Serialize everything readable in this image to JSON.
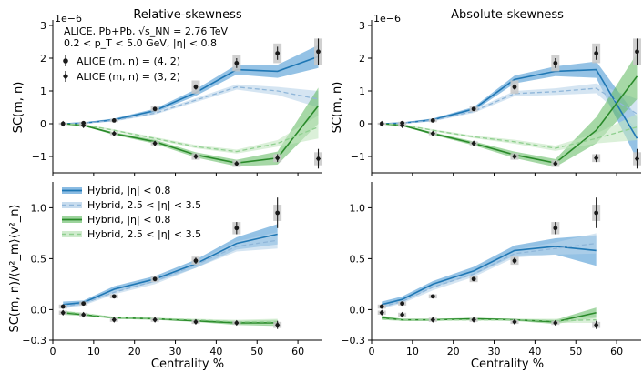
{
  "colors": {
    "blue": "#1f77b4",
    "blue_band": "#3d8fd0",
    "light_blue": "#8fb6d9",
    "light_blue_band": "#b9d3ea",
    "green": "#2a8a2a",
    "green_band": "#5cb85c",
    "light_green": "#8fcf8f",
    "light_green_band": "#c3e6c0",
    "data": "#1a1a1a",
    "syst": "#c8c8c8"
  },
  "annotation": {
    "line1": "ALICE, Pb+Pb, √s_NN = 2.76 TeV",
    "line2": "0.2 < p_T < 5.0 GeV, |η| < 0.8"
  },
  "legends": {
    "top": [
      "ALICE (m, n) = (4, 2)",
      "ALICE (m, n) = (3, 2)"
    ],
    "bottom": [
      "Hybrid, |η| < 0.8",
      "Hybrid, 2.5 < |η| < 3.5",
      "Hybrid, |η| < 0.8",
      "Hybrid, 2.5 < |η| < 3.5"
    ]
  },
  "chart_data": [
    {
      "type": "line",
      "panel": "top-left",
      "title": "Relative-skewness",
      "xlabel": "",
      "ylabel": "SC(m, n)",
      "multiplier": "1e−6",
      "xlim": [
        0,
        66
      ],
      "ylim": [
        -1.5,
        3
      ],
      "yticks": [
        -1,
        0,
        1,
        2,
        3
      ],
      "xticks": [],
      "data": [
        {
          "name": "ALICE (m, n) = (4, 2)",
          "x": [
            2.5,
            7.5,
            15,
            25,
            35,
            45,
            55,
            65
          ],
          "y": [
            0,
            0.02,
            0.1,
            0.45,
            1.12,
            1.85,
            2.15,
            2.2
          ],
          "err": [
            0.02,
            0.02,
            0.03,
            0.05,
            0.08,
            0.15,
            0.2,
            0.4
          ],
          "syst": [
            0.03,
            0.04,
            0.05,
            0.08,
            0.2,
            0.25,
            0.3,
            0.4
          ]
        },
        {
          "name": "ALICE (m, n) = (3, 2)",
          "x": [
            2.5,
            7.5,
            15,
            25,
            35,
            45,
            55,
            65
          ],
          "y": [
            0,
            -0.05,
            -0.3,
            -0.6,
            -1.0,
            -1.22,
            -1.05,
            -1.07
          ],
          "err": [
            0.02,
            0.02,
            0.03,
            0.05,
            0.06,
            0.06,
            0.12,
            0.3
          ],
          "syst": [
            0.03,
            0.04,
            0.05,
            0.06,
            0.1,
            0.1,
            0.12,
            0.2
          ]
        }
      ],
      "series": [
        {
          "name": "Hybrid, |η| < 0.8 (4,2)",
          "color": "blue",
          "x": [
            2.5,
            7.5,
            15,
            25,
            35,
            45,
            55,
            65
          ],
          "y": [
            0,
            0.02,
            0.12,
            0.4,
            0.95,
            1.65,
            1.6,
            2.05
          ],
          "band": [
            0.02,
            0.02,
            0.04,
            0.06,
            0.1,
            0.15,
            0.2,
            0.35
          ]
        },
        {
          "name": "Hybrid, 2.5 < |η| < 3.5 (4,2)",
          "color": "light_blue",
          "x": [
            2.5,
            7.5,
            15,
            25,
            35,
            45,
            55,
            65
          ],
          "y": [
            0,
            0.02,
            0.1,
            0.32,
            0.72,
            1.12,
            1.0,
            0.75
          ],
          "band": [
            0.02,
            0.02,
            0.03,
            0.04,
            0.06,
            0.08,
            0.12,
            0.25
          ]
        },
        {
          "name": "Hybrid, |η| < 0.8 (3,2)",
          "color": "green",
          "x": [
            2.5,
            7.5,
            15,
            25,
            35,
            45,
            55,
            65
          ],
          "y": [
            0,
            -0.05,
            -0.3,
            -0.55,
            -0.95,
            -1.2,
            -1.05,
            0.55
          ],
          "band": [
            0.02,
            0.02,
            0.04,
            0.06,
            0.08,
            0.1,
            0.2,
            0.55
          ]
        },
        {
          "name": "Hybrid, 2.5 < |η| < 3.5 (3,2)",
          "color": "light_green",
          "x": [
            2.5,
            7.5,
            15,
            25,
            35,
            45,
            55,
            65
          ],
          "y": [
            0,
            -0.03,
            -0.2,
            -0.45,
            -0.7,
            -0.85,
            -0.6,
            -0.1
          ],
          "band": [
            0.02,
            0.02,
            0.03,
            0.04,
            0.05,
            0.06,
            0.1,
            0.35
          ]
        }
      ]
    },
    {
      "type": "line",
      "panel": "top-right",
      "title": "Absolute-skewness",
      "xlabel": "",
      "ylabel": "SC(m, n)",
      "multiplier": "1e−6",
      "xlim": [
        0,
        66
      ],
      "ylim": [
        -1.5,
        3
      ],
      "yticks": [
        -1,
        0,
        1,
        2,
        3
      ],
      "xticks": [],
      "data": [
        {
          "name": "ALICE (m, n) = (4, 2)",
          "x": [
            2.5,
            7.5,
            15,
            25,
            35,
            45,
            55,
            65
          ],
          "y": [
            0,
            0.02,
            0.1,
            0.45,
            1.12,
            1.85,
            2.15,
            2.2
          ],
          "err": [
            0.02,
            0.02,
            0.03,
            0.05,
            0.08,
            0.15,
            0.2,
            0.4
          ],
          "syst": [
            0.03,
            0.04,
            0.05,
            0.08,
            0.2,
            0.25,
            0.3,
            0.4
          ]
        },
        {
          "name": "ALICE (m, n) = (3, 2)",
          "x": [
            2.5,
            7.5,
            15,
            25,
            35,
            45,
            55,
            65
          ],
          "y": [
            0,
            -0.05,
            -0.3,
            -0.6,
            -1.0,
            -1.22,
            -1.05,
            -1.07
          ],
          "err": [
            0.02,
            0.02,
            0.03,
            0.05,
            0.06,
            0.06,
            0.12,
            0.3
          ],
          "syst": [
            0.03,
            0.04,
            0.05,
            0.06,
            0.1,
            0.1,
            0.12,
            0.2
          ]
        }
      ],
      "series": [
        {
          "name": "Hybrid, |η| < 0.8 (4,2)",
          "color": "blue",
          "x": [
            2.5,
            7.5,
            15,
            25,
            35,
            45,
            55,
            65
          ],
          "y": [
            0,
            0.02,
            0.12,
            0.45,
            1.35,
            1.6,
            1.65,
            -0.45
          ],
          "band": [
            0.02,
            0.02,
            0.04,
            0.06,
            0.12,
            0.15,
            0.25,
            0.65
          ]
        },
        {
          "name": "Hybrid, 2.5 < |η| < 3.5 (4,2)",
          "color": "light_blue",
          "x": [
            2.5,
            7.5,
            15,
            25,
            35,
            45,
            55,
            65
          ],
          "y": [
            0,
            0.02,
            0.1,
            0.38,
            0.92,
            0.98,
            1.08,
            0.3
          ],
          "band": [
            0.02,
            0.02,
            0.03,
            0.05,
            0.08,
            0.1,
            0.15,
            0.45
          ]
        },
        {
          "name": "Hybrid, |η| < 0.8 (3,2)",
          "color": "green",
          "x": [
            2.5,
            7.5,
            15,
            25,
            35,
            45,
            55,
            65
          ],
          "y": [
            0,
            -0.05,
            -0.3,
            -0.6,
            -0.95,
            -1.2,
            -0.2,
            1.45
          ],
          "band": [
            0.02,
            0.02,
            0.04,
            0.06,
            0.1,
            0.12,
            0.4,
            0.7
          ]
        },
        {
          "name": "Hybrid, 2.5 < |η| < 3.5 (3,2)",
          "color": "light_green",
          "x": [
            2.5,
            7.5,
            15,
            25,
            35,
            45,
            55,
            65
          ],
          "y": [
            0,
            -0.03,
            -0.2,
            -0.4,
            -0.55,
            -0.75,
            -0.45,
            -0.1
          ],
          "band": [
            0.02,
            0.02,
            0.03,
            0.04,
            0.06,
            0.08,
            0.15,
            0.4
          ]
        }
      ]
    },
    {
      "type": "line",
      "panel": "bottom-left",
      "title": "",
      "xlabel": "Centrality %",
      "ylabel": "SC(m, n)/⟨v²_m⟩⟨v²_n⟩",
      "multiplier": "",
      "xlim": [
        0,
        66
      ],
      "ylim": [
        -0.3,
        1.2
      ],
      "yticks": [
        -0.3,
        0.0,
        0.5,
        1.0
      ],
      "xticks": [
        0,
        10,
        20,
        30,
        40,
        50,
        60
      ],
      "data": [
        {
          "name": "ALICE (m, n) = (4, 2)",
          "x": [
            2.5,
            7.5,
            15,
            25,
            35,
            45,
            55
          ],
          "y": [
            0.03,
            0.06,
            0.13,
            0.3,
            0.48,
            0.8,
            0.95
          ],
          "err": [
            0.01,
            0.01,
            0.01,
            0.02,
            0.03,
            0.06,
            0.15
          ],
          "syst": [
            0.02,
            0.02,
            0.02,
            0.03,
            0.04,
            0.06,
            0.08
          ]
        },
        {
          "name": "ALICE (m, n) = (3, 2)",
          "x": [
            2.5,
            7.5,
            15,
            25,
            35,
            45,
            55
          ],
          "y": [
            -0.03,
            -0.05,
            -0.1,
            -0.1,
            -0.12,
            -0.13,
            -0.15
          ],
          "err": [
            0.01,
            0.01,
            0.01,
            0.01,
            0.01,
            0.02,
            0.04
          ],
          "syst": [
            0.02,
            0.02,
            0.02,
            0.02,
            0.02,
            0.02,
            0.03
          ]
        }
      ],
      "series": [
        {
          "name": "Hybrid, |η| < 0.8 (4,2)",
          "color": "blue",
          "x": [
            2.5,
            7.5,
            15,
            25,
            35,
            45,
            55
          ],
          "y": [
            0.05,
            0.07,
            0.2,
            0.3,
            0.45,
            0.65,
            0.74
          ],
          "band": [
            0.03,
            0.02,
            0.03,
            0.03,
            0.04,
            0.06,
            0.1
          ]
        },
        {
          "name": "Hybrid, 2.5 < |η| < 3.5 (4,2)",
          "color": "light_blue",
          "x": [
            2.5,
            7.5,
            15,
            25,
            35,
            45,
            55
          ],
          "y": [
            0.03,
            0.06,
            0.17,
            0.28,
            0.44,
            0.62,
            0.68
          ],
          "band": [
            0.02,
            0.02,
            0.02,
            0.03,
            0.03,
            0.05,
            0.08
          ]
        },
        {
          "name": "Hybrid, |η| < 0.8 (3,2)",
          "color": "green",
          "x": [
            2.5,
            7.5,
            15,
            25,
            35,
            45,
            55
          ],
          "y": [
            -0.03,
            -0.05,
            -0.08,
            -0.09,
            -0.11,
            -0.13,
            -0.13
          ],
          "band": [
            0.02,
            0.01,
            0.01,
            0.01,
            0.01,
            0.02,
            0.03
          ]
        },
        {
          "name": "Hybrid, 2.5 < |η| < 3.5 (3,2)",
          "color": "light_green",
          "x": [
            2.5,
            7.5,
            15,
            25,
            35,
            45,
            55
          ],
          "y": [
            -0.02,
            -0.04,
            -0.08,
            -0.09,
            -0.1,
            -0.12,
            -0.12
          ],
          "band": [
            0.01,
            0.01,
            0.01,
            0.01,
            0.01,
            0.02,
            0.03
          ]
        }
      ]
    },
    {
      "type": "line",
      "panel": "bottom-right",
      "title": "",
      "xlabel": "Centrality %",
      "ylabel": "",
      "multiplier": "",
      "xlim": [
        0,
        66
      ],
      "ylim": [
        -0.3,
        1.2
      ],
      "yticks": [
        -0.3,
        0.0,
        0.5,
        1.0
      ],
      "xticks": [
        0,
        10,
        20,
        30,
        40,
        50,
        60
      ],
      "data": [
        {
          "name": "ALICE (m, n) = (4, 2)",
          "x": [
            2.5,
            7.5,
            15,
            25,
            35,
            45,
            55
          ],
          "y": [
            0.03,
            0.06,
            0.13,
            0.3,
            0.48,
            0.8,
            0.95
          ],
          "err": [
            0.01,
            0.01,
            0.01,
            0.02,
            0.03,
            0.06,
            0.15
          ],
          "syst": [
            0.02,
            0.02,
            0.02,
            0.03,
            0.04,
            0.06,
            0.08
          ]
        },
        {
          "name": "ALICE (m, n) = (3, 2)",
          "x": [
            2.5,
            7.5,
            15,
            25,
            35,
            45,
            55
          ],
          "y": [
            -0.03,
            -0.05,
            -0.1,
            -0.1,
            -0.12,
            -0.13,
            -0.15
          ],
          "err": [
            0.01,
            0.01,
            0.01,
            0.01,
            0.01,
            0.02,
            0.04
          ],
          "syst": [
            0.02,
            0.02,
            0.02,
            0.02,
            0.02,
            0.02,
            0.03
          ]
        }
      ],
      "series": [
        {
          "name": "Hybrid, |η| < 0.8 (4,2)",
          "color": "blue",
          "x": [
            2.5,
            7.5,
            15,
            25,
            35,
            45,
            55
          ],
          "y": [
            0.05,
            0.1,
            0.25,
            0.38,
            0.58,
            0.62,
            0.58
          ],
          "band": [
            0.03,
            0.03,
            0.03,
            0.04,
            0.05,
            0.08,
            0.15
          ]
        },
        {
          "name": "Hybrid, 2.5 < |η| < 3.5 (4,2)",
          "color": "light_blue",
          "x": [
            2.5,
            7.5,
            15,
            25,
            35,
            45,
            55
          ],
          "y": [
            0.03,
            0.08,
            0.22,
            0.35,
            0.55,
            0.6,
            0.65
          ],
          "band": [
            0.02,
            0.02,
            0.03,
            0.03,
            0.04,
            0.06,
            0.1
          ]
        },
        {
          "name": "Hybrid, |η| < 0.8 (3,2)",
          "color": "green",
          "x": [
            2.5,
            7.5,
            15,
            25,
            35,
            45,
            55
          ],
          "y": [
            -0.08,
            -0.1,
            -0.1,
            -0.09,
            -0.1,
            -0.12,
            -0.03
          ],
          "band": [
            0.02,
            0.01,
            0.01,
            0.01,
            0.01,
            0.02,
            0.05
          ]
        },
        {
          "name": "Hybrid, 2.5 < |η| < 3.5 (3,2)",
          "color": "light_green",
          "x": [
            2.5,
            7.5,
            15,
            25,
            35,
            45,
            55
          ],
          "y": [
            -0.09,
            -0.1,
            -0.1,
            -0.1,
            -0.1,
            -0.11,
            -0.1
          ],
          "band": [
            0.01,
            0.01,
            0.01,
            0.01,
            0.01,
            0.02,
            0.03
          ]
        }
      ]
    }
  ]
}
